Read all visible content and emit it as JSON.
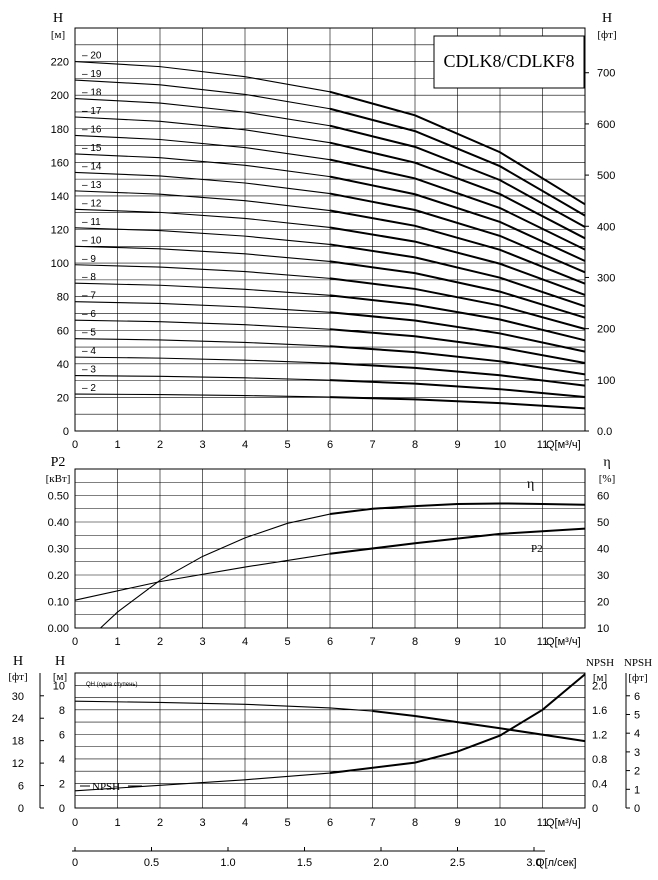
{
  "model": "CDLK8/CDLKF8",
  "chart_data": [
    {
      "type": "line",
      "id": "head",
      "xlabel": "Q[м³/ч]",
      "ylabel_left": "H",
      "ylabel_left_unit": "[м]",
      "ylabel_right": "H",
      "ylabel_right_unit": "[фт]",
      "xlim": [
        0,
        12
      ],
      "ylim": [
        0,
        240
      ],
      "x_ticks": [
        0,
        1,
        2,
        3,
        4,
        5,
        6,
        7,
        8,
        9,
        10,
        11
      ],
      "y_ticks": [
        0,
        20,
        40,
        60,
        80,
        100,
        120,
        140,
        160,
        180,
        200,
        220
      ],
      "y_right_ticks": [
        0,
        100,
        200,
        300,
        400,
        500,
        600,
        700
      ],
      "y_right_tick_labels": [
        "0.0",
        "100",
        "200",
        "300",
        "400",
        "500",
        "600",
        "700"
      ],
      "stages": [
        2,
        3,
        4,
        5,
        6,
        7,
        8,
        9,
        10,
        11,
        12,
        13,
        14,
        15,
        16,
        17,
        18,
        19,
        20
      ],
      "stage_labels": [
        "2",
        "3",
        "4",
        "5",
        "6",
        "7",
        "8",
        "9",
        "10",
        "11",
        "12",
        "13",
        "14",
        "15",
        "16",
        "17",
        "18",
        "19",
        "20"
      ],
      "curve_per_stage": {
        "x": [
          0,
          2,
          4,
          6,
          8,
          10,
          12
        ],
        "y": [
          11.0,
          10.85,
          10.55,
          10.1,
          9.4,
          8.3,
          6.75
        ]
      },
      "grid": true
    },
    {
      "type": "line",
      "id": "power_efficiency",
      "xlabel": "Q[м³/ч]",
      "ylabel_left": "P2",
      "ylabel_left_unit": "[кВт]",
      "ylabel_right": "η",
      "ylabel_right_unit": "[%]",
      "xlim": [
        0,
        12
      ],
      "ylim_left": [
        0,
        0.6
      ],
      "ylim_right": [
        10,
        70
      ],
      "x_ticks": [
        0,
        1,
        2,
        3,
        4,
        5,
        6,
        7,
        8,
        9,
        10,
        11
      ],
      "y_ticks_left": [
        "0.00",
        "0.10",
        "0.20",
        "0.30",
        "0.40",
        "0.50"
      ],
      "y_ticks_right": [
        10,
        20,
        30,
        40,
        50,
        60
      ],
      "series": [
        {
          "name": "P2",
          "axis": "left",
          "x": [
            0,
            2,
            4,
            6,
            8,
            10,
            12
          ],
          "y": [
            0.105,
            0.175,
            0.23,
            0.28,
            0.32,
            0.355,
            0.375
          ]
        },
        {
          "name": "η",
          "axis": "right",
          "x": [
            0.6,
            1,
            2,
            3,
            4,
            5,
            6,
            7,
            8,
            9,
            10,
            11,
            12
          ],
          "y": [
            10,
            16,
            28,
            37,
            44,
            49.5,
            53,
            55,
            56,
            56.8,
            57,
            56.8,
            56.5
          ]
        }
      ],
      "grid": true
    },
    {
      "type": "line",
      "id": "npsh",
      "xlabel": "Q[м³/ч]",
      "x2label": "Q[л/сек]",
      "ylabel_left": "H",
      "ylabel_left_unit": "[м]",
      "ylabel_far_left": "H",
      "ylabel_far_left_unit": "[фт]",
      "ylabel_right": "NPSH",
      "ylabel_right_unit": "[м]",
      "ylabel_far_right": "NPSH",
      "ylabel_far_right_unit": "[фт]",
      "xlim": [
        0,
        12
      ],
      "ylim_left": [
        0,
        11
      ],
      "x_ticks": [
        0,
        1,
        2,
        3,
        4,
        5,
        6,
        7,
        8,
        9,
        10,
        11
      ],
      "y_ticks_left": [
        0,
        2,
        4,
        6,
        8,
        10
      ],
      "y_ticks_far_left": [
        0,
        6,
        12,
        18,
        24,
        30
      ],
      "y_ticks_right": [
        "0",
        "0.4",
        "0.8",
        "1.2",
        "1.6",
        "2.0"
      ],
      "y_ticks_far_right": [
        0,
        1,
        2,
        3,
        4,
        5,
        6
      ],
      "x2_ticks": [
        "0",
        "0.5",
        "1.0",
        "1.5",
        "2.0",
        "2.5",
        "3.0"
      ],
      "annotation": "QH (одна ступень)",
      "npsh_label": "NPSH",
      "series": [
        {
          "name": "QH (одна ступень)",
          "x": [
            0,
            2,
            4,
            6,
            7,
            8,
            10,
            12
          ],
          "y": [
            8.7,
            8.6,
            8.45,
            8.15,
            7.9,
            7.5,
            6.5,
            5.45
          ]
        },
        {
          "name": "NPSH",
          "x": [
            0,
            2,
            4,
            6,
            8,
            9,
            10,
            11,
            12
          ],
          "y": [
            1.4,
            1.85,
            2.3,
            2.85,
            3.7,
            4.6,
            5.9,
            8.0,
            10.9
          ]
        }
      ],
      "grid": true
    }
  ]
}
